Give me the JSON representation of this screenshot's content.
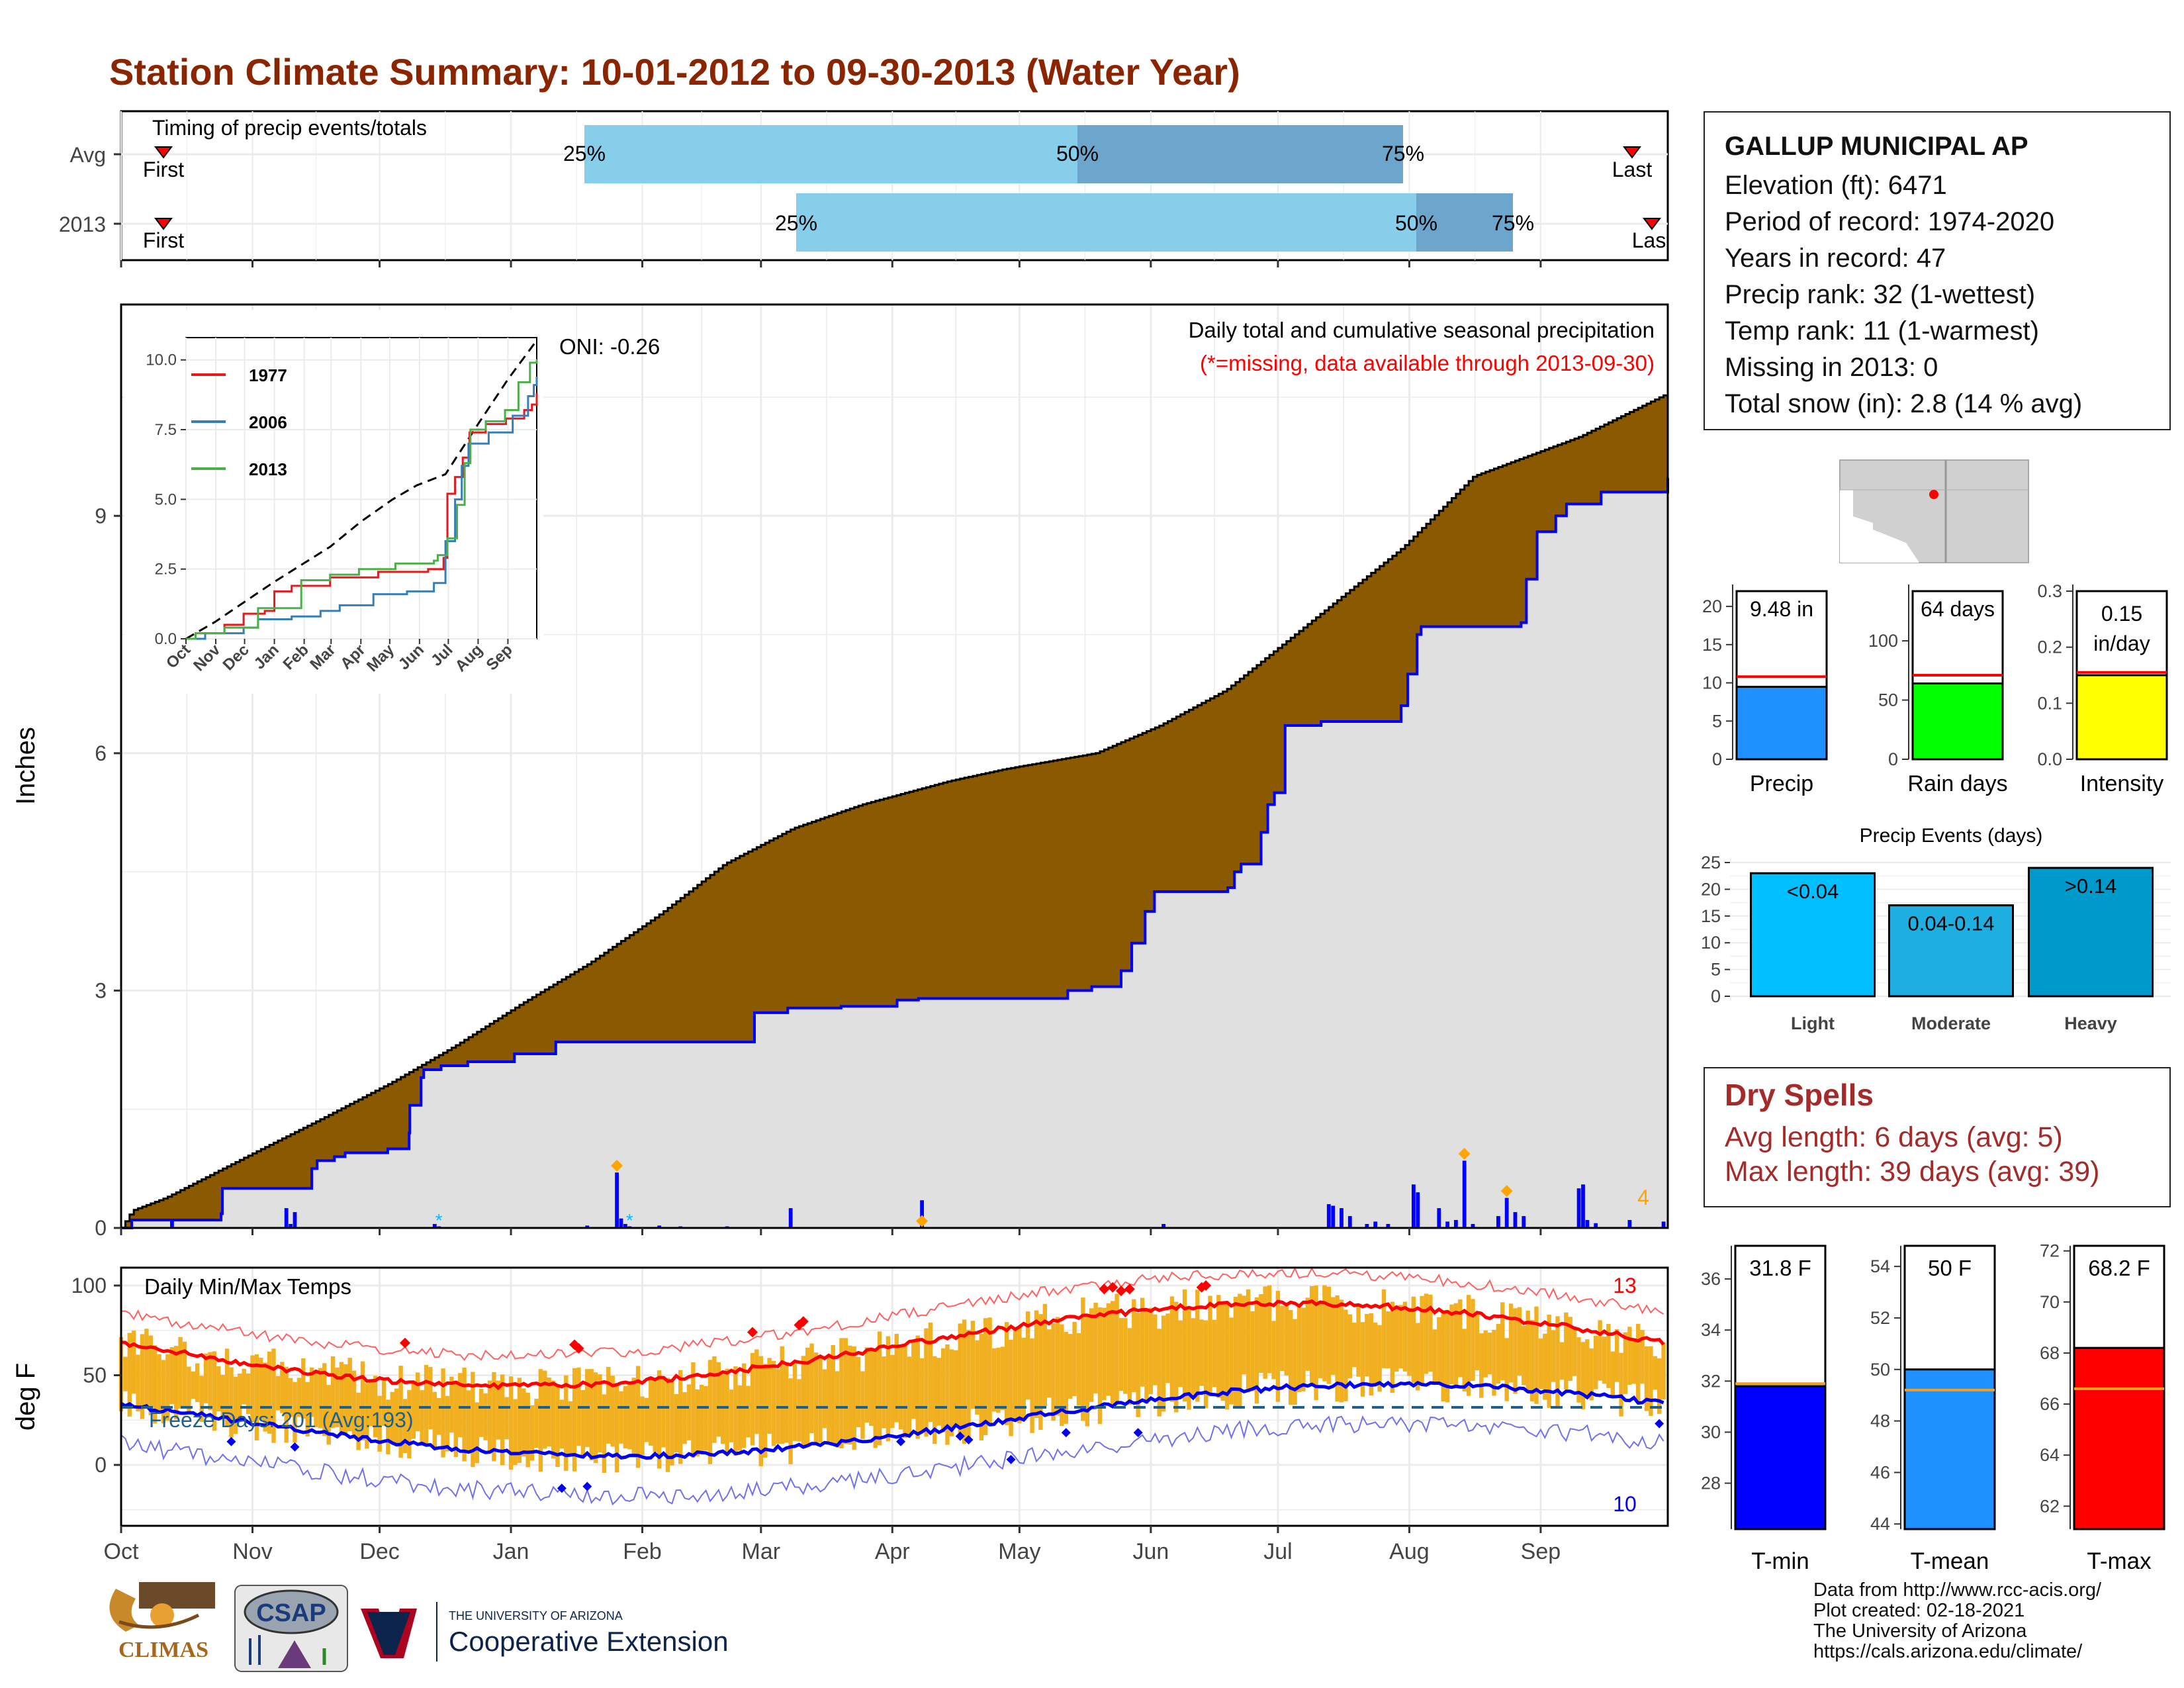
{
  "title": "Station Climate Summary: 10-01-2012 to 09-30-2013 (Water Year)",
  "colors": {
    "title": "#8b2500",
    "brown": "#8b5a00",
    "obs": "#0000ff",
    "light_blue": "#87ceeb",
    "mid_blue": "#6ca6cd",
    "orange": "#f0b020",
    "red": "#ff0000",
    "gray_fill": "#e0e0e0"
  },
  "timing": {
    "label": "Timing of precip events/totals",
    "rows": [
      {
        "name": "Avg",
        "first_label": "First",
        "last_label": "Last",
        "p25": "25%",
        "p50": "50%",
        "p75": "75%"
      },
      {
        "name": "2013",
        "first_label": "First",
        "last_label": "Last",
        "p25": "25%",
        "p50": "50%",
        "p75": "75%"
      }
    ]
  },
  "station": {
    "name": "GALLUP MUNICIPAL AP",
    "lines": [
      "Elevation (ft): 6471",
      "Period of record: 1974-2020",
      "Years in record: 47",
      "Precip rank: 32 (1-wettest)",
      "Temp rank: 11 (1-warmest)",
      "Missing in 2013: 0",
      "Total snow (in): 2.8 (14 % avg)"
    ]
  },
  "precip_panel": {
    "ylabel": "Inches",
    "yticks": [
      "0",
      "3",
      "6",
      "9"
    ],
    "oni": "ONI: -0.26",
    "caption": "Daily total and cumulative seasonal precipitation",
    "missing_note": "(*=missing, data available through 2013-09-30)",
    "corner_count": "4"
  },
  "inset": {
    "yticks": [
      "0.0",
      "2.5",
      "5.0",
      "7.5",
      "10.0"
    ],
    "months": [
      "Oct",
      "Nov",
      "Dec",
      "Jan",
      "Feb",
      "Mar",
      "Apr",
      "May",
      "Jun",
      "Jul",
      "Aug",
      "Sep"
    ],
    "legend": [
      {
        "name": "1977",
        "color": "#e41a1c"
      },
      {
        "name": "2006",
        "color": "#377eb8"
      },
      {
        "name": "2013",
        "color": "#4daf4a"
      }
    ]
  },
  "temp_panel": {
    "ylabel": "deg F",
    "yticks": [
      "0",
      "50",
      "100"
    ],
    "label": "Daily Min/Max Temps",
    "freeze": "Freeze Days: 201 (Avg:193)",
    "count_high": "13",
    "count_low": "10"
  },
  "months": [
    "Oct",
    "Nov",
    "Dec",
    "Jan",
    "Feb",
    "Mar",
    "Apr",
    "May",
    "Jun",
    "Jul",
    "Aug",
    "Sep"
  ],
  "minibars": [
    {
      "label": "Precip",
      "value_text": "9.48 in",
      "value": 9.48,
      "avg": 10.8,
      "ylim": [
        0,
        22
      ],
      "yticks": [
        "0",
        "5",
        "10",
        "15",
        "20"
      ],
      "color": "#1e90ff"
    },
    {
      "label": "Rain days",
      "value_text": "64 days",
      "value": 64,
      "avg": 71,
      "ylim": [
        0,
        142
      ],
      "yticks": [
        "0",
        "50",
        "100"
      ],
      "color": "#00ff00"
    },
    {
      "label": "Intensity",
      "value_text": "0.15 in/day",
      "value": 0.15,
      "avg": 0.155,
      "ylim": [
        0,
        0.3
      ],
      "yticks": [
        "0.0",
        "0.1",
        "0.2",
        "0.3"
      ],
      "color": "#ffff00"
    }
  ],
  "events": {
    "title": "Precip Events (days)",
    "yticks": [
      "0",
      "5",
      "10",
      "15",
      "20",
      "25"
    ],
    "bars": [
      {
        "category": "Light",
        "label": "<0.04",
        "value": 23,
        "color": "#00bfff"
      },
      {
        "category": "Moderate",
        "label": "0.04-0.14",
        "value": 17,
        "color": "#1eaee0"
      },
      {
        "category": "Heavy",
        "label": ">0.14",
        "value": 24,
        "color": "#0099cc"
      }
    ]
  },
  "dry_spells": {
    "title": "Dry Spells",
    "avg_length": "Avg length: 6 days (avg: 5)",
    "max_length": "Max length: 39 days (avg: 39)"
  },
  "tempbars": [
    {
      "label": "T-min",
      "value_text": "31.8 F",
      "value": 31.8,
      "avg": 31.9,
      "ylim": [
        26.2,
        37.3
      ],
      "yticks": [
        "28",
        "30",
        "32",
        "34",
        "36"
      ],
      "color": "#0000ff"
    },
    {
      "label": "T-mean",
      "value_text": "50 F",
      "value": 50.0,
      "avg": 49.2,
      "ylim": [
        43.8,
        54.8
      ],
      "yticks": [
        "44",
        "46",
        "48",
        "50",
        "52",
        "54"
      ],
      "color": "#1e90ff"
    },
    {
      "label": "T-max",
      "value_text": "68.2 F",
      "value": 68.2,
      "avg": 66.6,
      "ylim": [
        61.1,
        72.2
      ],
      "yticks": [
        "62",
        "64",
        "66",
        "68",
        "70",
        "72"
      ],
      "color": "#ff0000"
    }
  ],
  "footer": [
    "Data from http://www.rcc-acis.org/",
    "Plot created: 02-18-2021",
    "The University of Arizona",
    "https://cals.arizona.edu/climate/"
  ],
  "logos": {
    "climas": "CLIMAS",
    "csap": "CSAP",
    "ua_small": "THE UNIVERSITY OF ARIZONA",
    "ua_big": "Cooperative Extension"
  }
}
